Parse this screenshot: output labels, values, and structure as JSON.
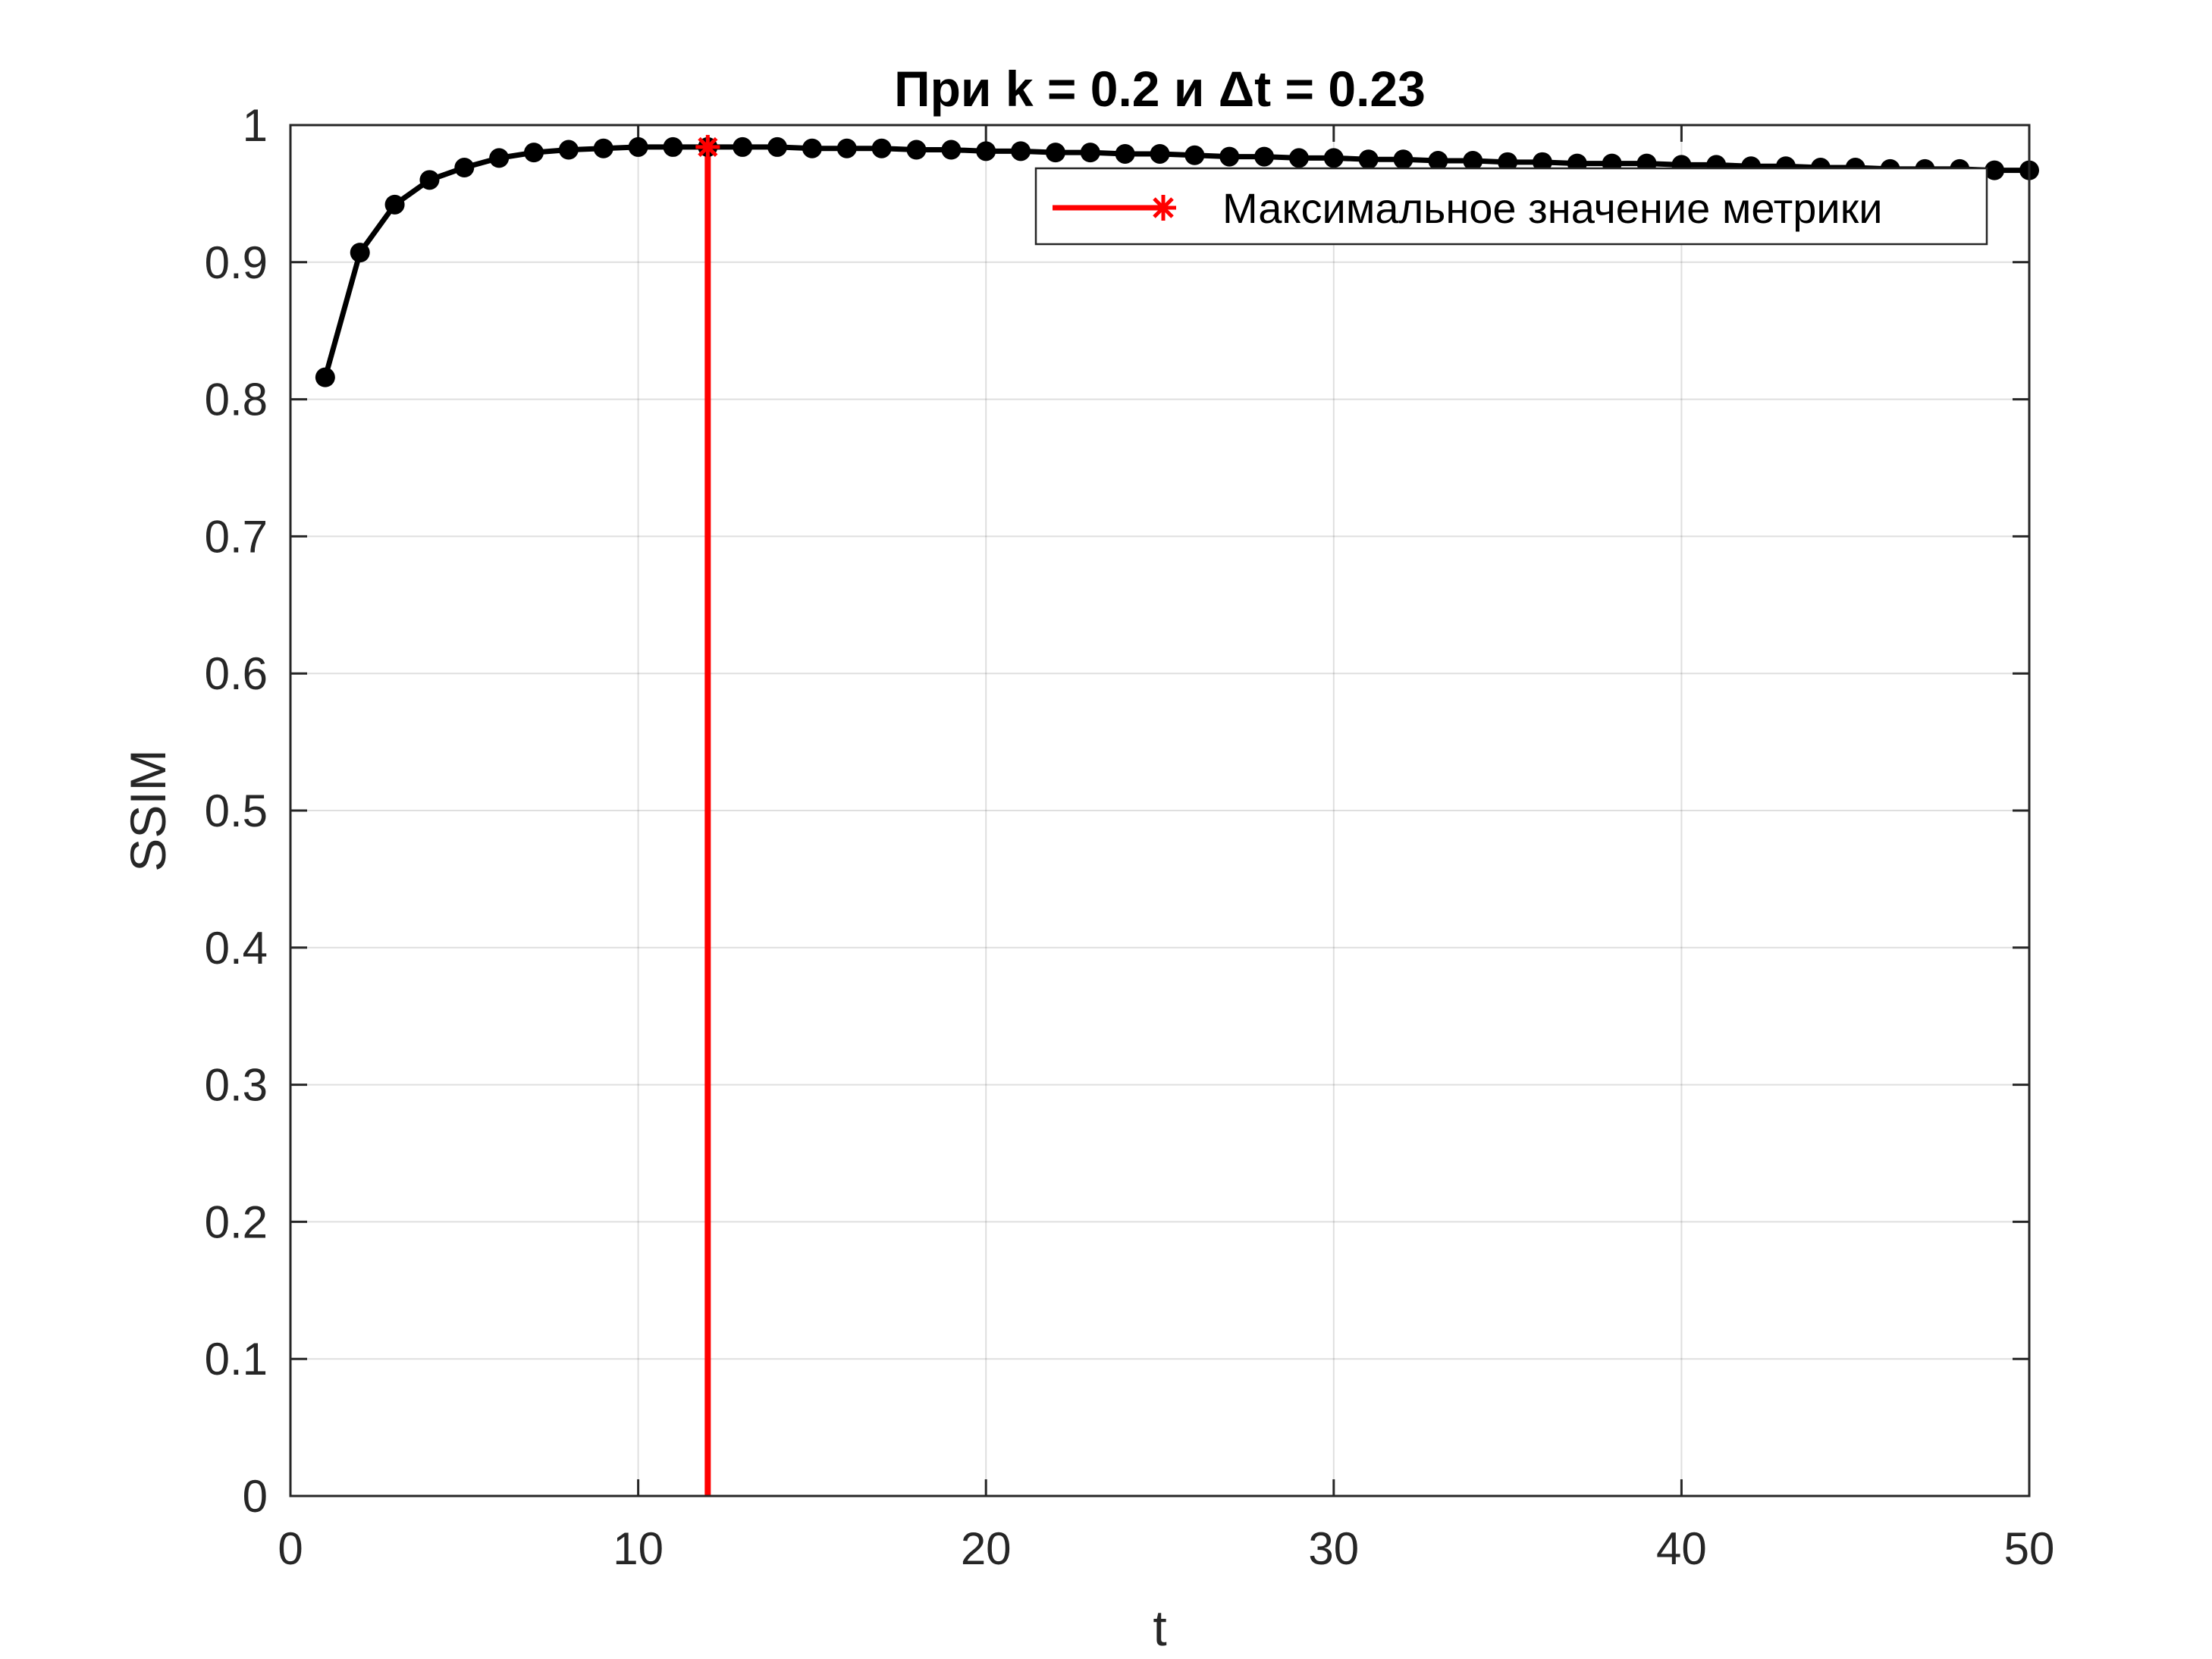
{
  "chart_data": {
    "type": "line",
    "title": "При k = 0.2 и Δt = 0.23",
    "xlabel": "t",
    "ylabel": "SSIM",
    "xlim": [
      0,
      50
    ],
    "ylim": [
      0,
      1
    ],
    "xticks": [
      0,
      10,
      20,
      30,
      40,
      50
    ],
    "xtick_labels": [
      "0",
      "10",
      "20",
      "30",
      "40",
      "50"
    ],
    "yticks": [
      0,
      0.1,
      0.2,
      0.3,
      0.4,
      0.5,
      0.6,
      0.7,
      0.8,
      0.9,
      1
    ],
    "ytick_labels": [
      "0",
      "0.1",
      "0.2",
      "0.3",
      "0.4",
      "0.5",
      "0.6",
      "0.7",
      "0.8",
      "0.9",
      "1"
    ],
    "grid": true,
    "legend_position": "top-right",
    "series": [
      {
        "color": "#000000",
        "marker": "dot",
        "x": [
          1,
          2,
          3,
          4,
          5,
          6,
          7,
          8,
          9,
          10,
          11,
          12,
          13,
          14,
          15,
          16,
          17,
          18,
          19,
          20,
          21,
          22,
          23,
          24,
          25,
          26,
          27,
          28,
          29,
          30,
          31,
          32,
          33,
          34,
          35,
          36,
          37,
          38,
          39,
          40,
          41,
          42,
          43,
          44,
          45,
          46,
          47,
          48,
          49,
          50
        ],
        "y": [
          0.816,
          0.907,
          0.942,
          0.96,
          0.969,
          0.976,
          0.98,
          0.982,
          0.983,
          0.984,
          0.984,
          0.984,
          0.984,
          0.984,
          0.983,
          0.983,
          0.983,
          0.982,
          0.982,
          0.981,
          0.981,
          0.98,
          0.98,
          0.979,
          0.979,
          0.978,
          0.977,
          0.977,
          0.976,
          0.976,
          0.975,
          0.975,
          0.974,
          0.974,
          0.973,
          0.973,
          0.972,
          0.972,
          0.972,
          0.971,
          0.971,
          0.97,
          0.97,
          0.969,
          0.969,
          0.968,
          0.968,
          0.968,
          0.967,
          0.967
        ]
      },
      {
        "name": "Максимальное значение метрики",
        "color": "#ff0000",
        "marker": "asterisk",
        "x": [
          12,
          12
        ],
        "y": [
          0,
          0.984
        ]
      }
    ]
  }
}
